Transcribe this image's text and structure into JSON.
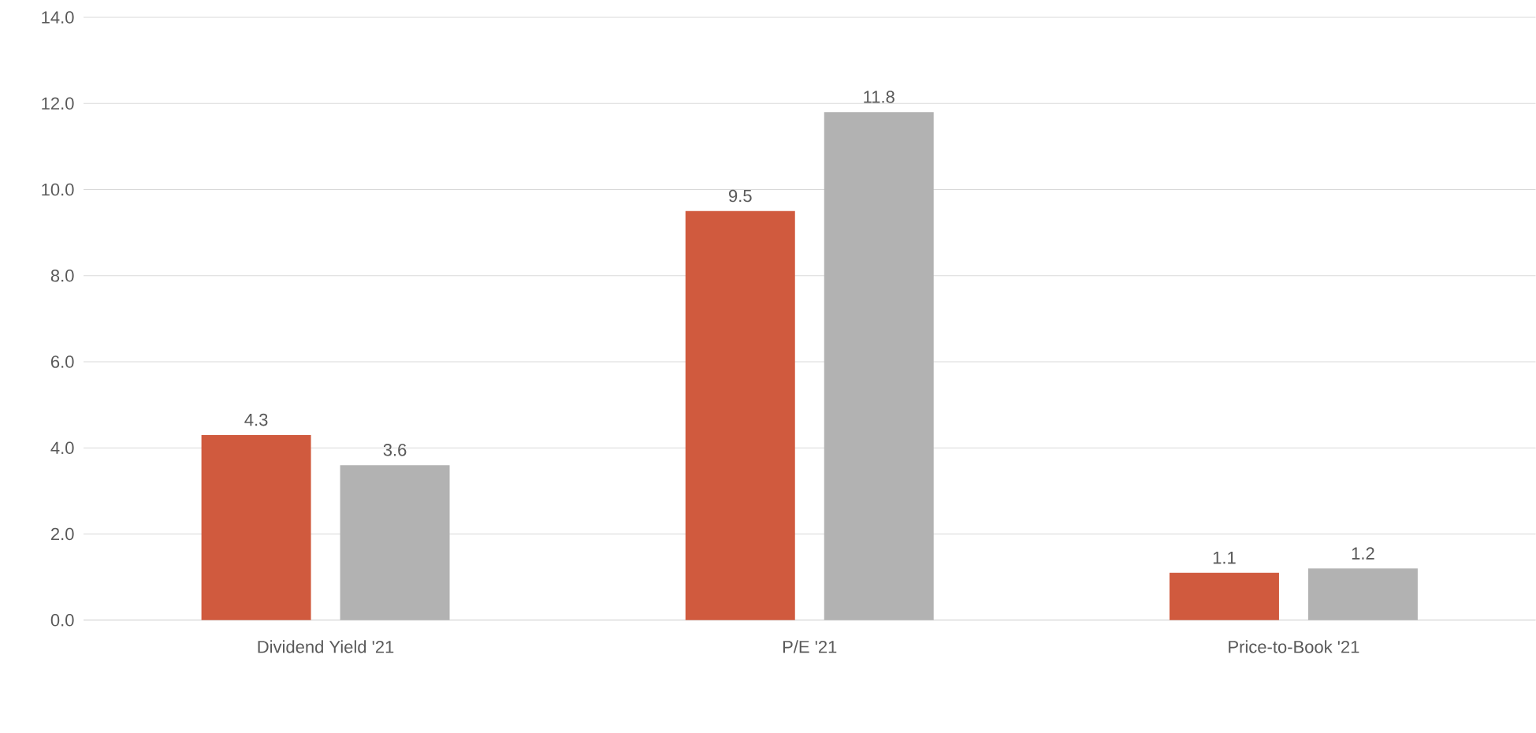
{
  "chart_data": {
    "type": "bar",
    "categories": [
      "Dividend Yield '21",
      "P/E '21",
      "Price-to-Book '21"
    ],
    "series": [
      {
        "color": "#d05a3e",
        "values": [
          4.3,
          9.5,
          1.1
        ]
      },
      {
        "color": "#b2b2b2",
        "values": [
          3.6,
          11.8,
          1.2
        ]
      }
    ],
    "ylim": [
      0,
      14
    ],
    "yticks": [
      {
        "value": 0,
        "label": "0.0"
      },
      {
        "value": 2,
        "label": "2.0"
      },
      {
        "value": 4,
        "label": "4.0"
      },
      {
        "value": 6,
        "label": "6.0"
      },
      {
        "value": 8,
        "label": "8.0"
      },
      {
        "value": 10,
        "label": "10.0"
      },
      {
        "value": 12,
        "label": "12.0"
      },
      {
        "value": 14,
        "label": "14.0"
      }
    ],
    "grid": "y",
    "data_labels": true
  }
}
